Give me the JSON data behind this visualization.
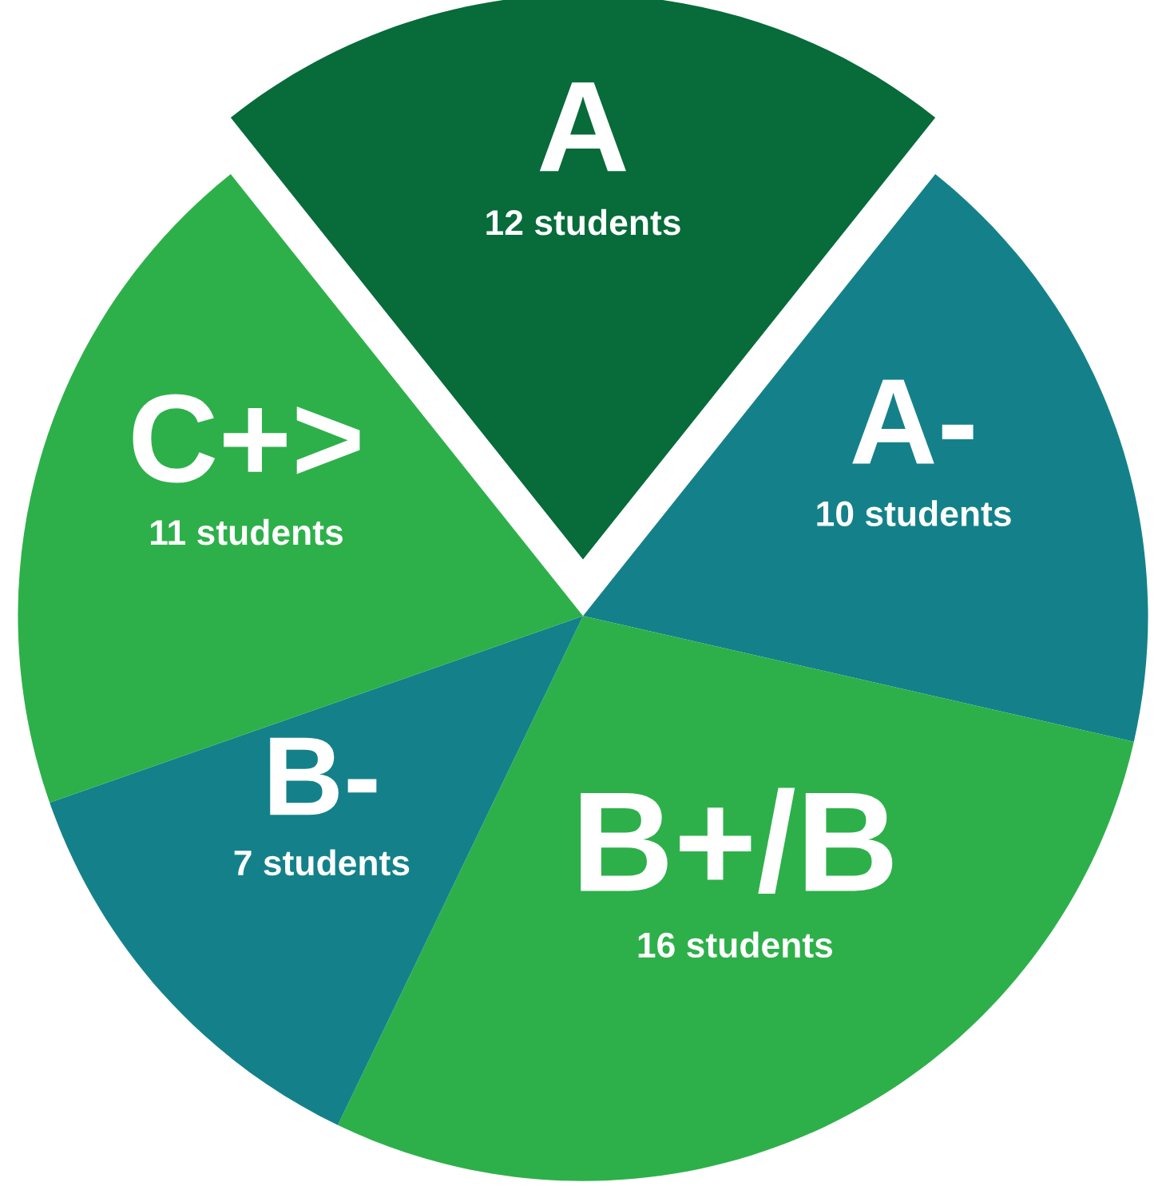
{
  "chart_data": {
    "type": "pie",
    "categories": [
      "A",
      "A-",
      "B+/B",
      "B-",
      "C+>"
    ],
    "values": [
      12,
      10,
      16,
      7,
      11
    ],
    "value_labels": [
      "12 students",
      "10 students",
      "16 students",
      "7 students",
      "11 students"
    ],
    "colors": [
      "#076b3a",
      "#14818a",
      "#2db04a",
      "#14818a",
      "#2db04a"
    ]
  }
}
